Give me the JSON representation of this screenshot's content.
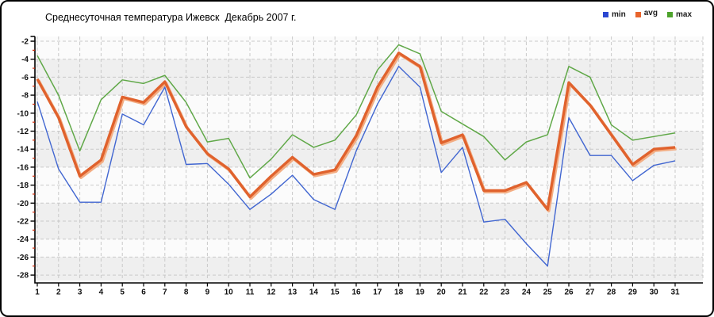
{
  "title": "Среднесуточная температура Ижевск  Декабрь 2007 г.",
  "legend": [
    {
      "label": "min",
      "color": "#2b47d1",
      "raised": false
    },
    {
      "label": "avg",
      "color": "#e8642c",
      "raised": true
    },
    {
      "label": "max",
      "color": "#4da32b",
      "raised": false
    }
  ],
  "colors": {
    "axis": "#000000",
    "minor_tick": "#cc2200",
    "grid": "#c9c9c9",
    "plot_bg": "#fbfbfb",
    "band": "#efefef",
    "avg_shadow": "#f3ad83",
    "tick_label": "#111111"
  },
  "chart_data": {
    "type": "line",
    "title": "Среднесуточная температура Ижевск  Декабрь 2007 г.",
    "xlabel": "",
    "ylabel": "",
    "x": [
      1,
      2,
      3,
      4,
      5,
      6,
      7,
      8,
      9,
      10,
      11,
      12,
      13,
      14,
      15,
      16,
      17,
      18,
      19,
      20,
      21,
      22,
      23,
      24,
      25,
      26,
      27,
      28,
      29,
      30,
      31
    ],
    "ylim": [
      -28,
      -2
    ],
    "yticks": [
      -2,
      -4,
      -6,
      -8,
      -10,
      -12,
      -14,
      -16,
      -18,
      -20,
      -22,
      -24,
      -26,
      -28
    ],
    "grid": true,
    "legend_position": "top-right",
    "series": [
      {
        "name": "min",
        "color": "#4166d1",
        "values": [
          -8.7,
          -16.2,
          -19.9,
          -19.9,
          -10.1,
          -11.3,
          -7.1,
          -15.7,
          -15.6,
          -17.9,
          -20.7,
          -19.0,
          -16.9,
          -19.6,
          -20.7,
          -14.2,
          -9.0,
          -4.8,
          -7.1,
          -16.6,
          -13.8,
          -22.1,
          -21.8,
          -24.5,
          -27.0,
          -10.5,
          -14.7,
          -14.7,
          -17.5,
          -15.8,
          -15.3
        ]
      },
      {
        "name": "avg",
        "color": "#e0622d",
        "values": [
          -6.2,
          -10.5,
          -17.0,
          -15.2,
          -8.2,
          -8.8,
          -6.5,
          -11.5,
          -14.5,
          -16.2,
          -19.3,
          -17.0,
          -14.9,
          -16.8,
          -16.3,
          -12.5,
          -7.1,
          -3.3,
          -4.8,
          -13.3,
          -12.4,
          -18.6,
          -18.6,
          -17.7,
          -20.7,
          -6.6,
          -9.1,
          -12.4,
          -15.7,
          -14.0,
          -13.8
        ]
      },
      {
        "name": "max",
        "color": "#60a848",
        "values": [
          -3.6,
          -8.0,
          -14.2,
          -8.5,
          -6.3,
          -6.7,
          -5.8,
          -8.8,
          -13.2,
          -12.8,
          -17.2,
          -15.1,
          -12.4,
          -13.8,
          -13.0,
          -10.2,
          -5.2,
          -2.4,
          -3.4,
          -9.8,
          -11.2,
          -12.6,
          -15.2,
          -13.2,
          -12.4,
          -4.8,
          -6.0,
          -11.3,
          -13.0,
          -12.6,
          -12.2
        ]
      }
    ]
  }
}
